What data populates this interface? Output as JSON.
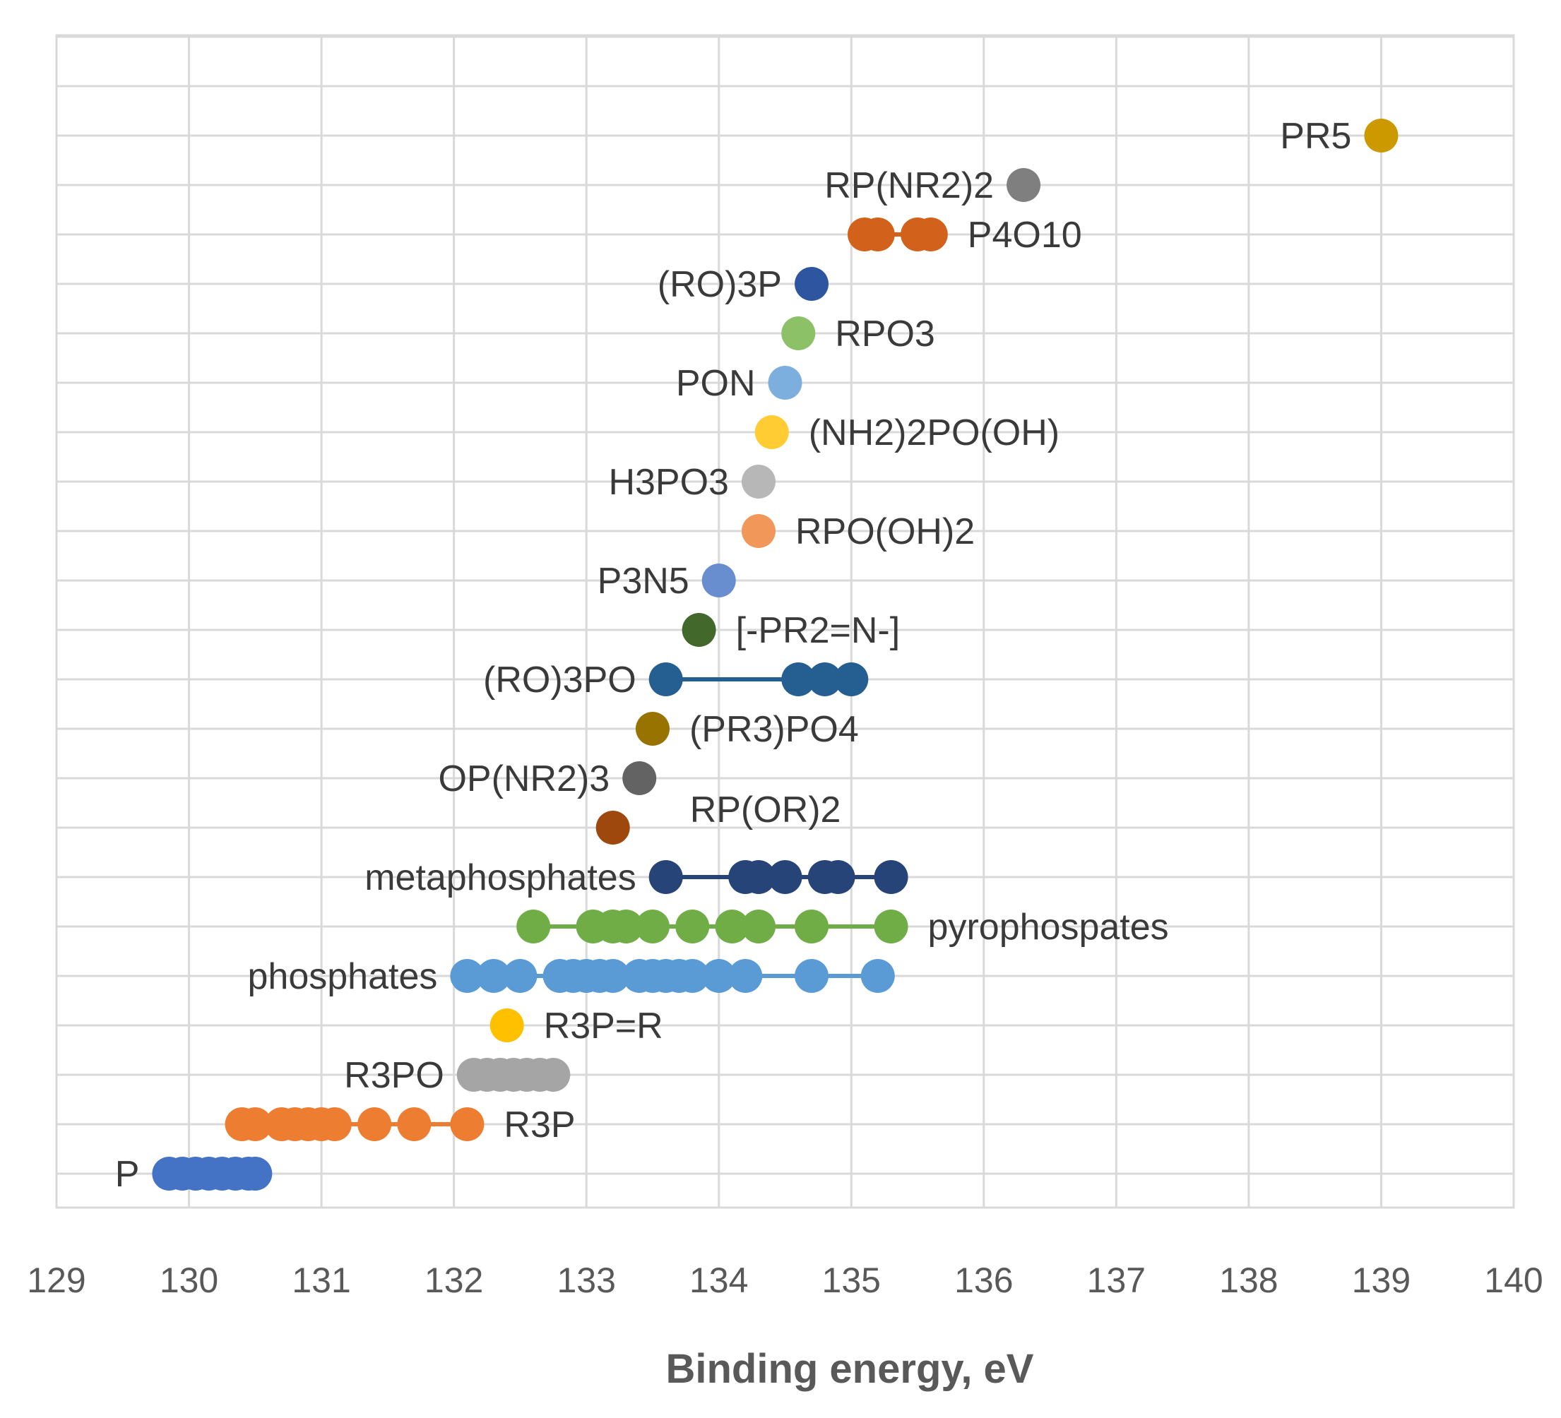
{
  "chart_data": {
    "type": "scatter",
    "title": "",
    "xlabel": "Binding energy, eV",
    "ylabel": "",
    "xlim": [
      129,
      140
    ],
    "x_ticks": [
      129,
      130,
      131,
      132,
      133,
      134,
      135,
      136,
      137,
      138,
      139,
      140
    ],
    "grid": "on",
    "legend": "none",
    "series": [
      {
        "name": "P",
        "label_side": "left",
        "color": "#4472c4",
        "values": [
          129.85,
          129.95,
          130.05,
          130.15,
          130.25,
          130.35,
          130.45,
          130.5
        ]
      },
      {
        "name": "R3P",
        "label_side": "right",
        "color": "#ed7d31",
        "values": [
          130.4,
          130.5,
          130.7,
          130.8,
          130.9,
          131.0,
          131.1,
          131.4,
          131.7,
          132.1
        ]
      },
      {
        "name": "R3PO",
        "label_side": "left",
        "color": "#a5a5a5",
        "values": [
          132.15,
          132.25,
          132.35,
          132.45,
          132.55,
          132.65,
          132.75
        ]
      },
      {
        "name": "R3P=R",
        "label_side": "right",
        "color": "#ffc000",
        "values": [
          132.4
        ]
      },
      {
        "name": "phosphates",
        "label_side": "left",
        "color": "#5b9bd5",
        "values": [
          132.1,
          132.3,
          132.5,
          132.8,
          132.9,
          133.0,
          133.1,
          133.2,
          133.4,
          133.5,
          133.6,
          133.7,
          133.8,
          134.0,
          134.2,
          134.7,
          135.2
        ]
      },
      {
        "name": "pyrophospates",
        "label_side": "right",
        "color": "#70ad47",
        "values": [
          132.6,
          133.05,
          133.2,
          133.3,
          133.5,
          133.8,
          134.1,
          134.3,
          134.7,
          135.3
        ]
      },
      {
        "name": "metaphosphates",
        "label_side": "left",
        "color": "#264478",
        "values": [
          133.6,
          134.2,
          134.3,
          134.5,
          134.8,
          134.9,
          135.3
        ]
      },
      {
        "name": "RP(OR)2",
        "label_side": "right-above",
        "color": "#9e480e",
        "values": [
          133.2
        ]
      },
      {
        "name": "OP(NR2)3",
        "label_side": "left",
        "color": "#636363",
        "values": [
          133.4
        ]
      },
      {
        "name": "(PR3)PO4",
        "label_side": "right",
        "color": "#997300",
        "values": [
          133.5
        ]
      },
      {
        "name": "(RO)3PO",
        "label_side": "left",
        "color": "#255e91",
        "values": [
          133.6,
          134.6,
          134.8,
          135.0
        ]
      },
      {
        "name": "[-PR2=N-]",
        "label_side": "right",
        "color": "#43682b",
        "values": [
          133.85
        ]
      },
      {
        "name": "P3N5",
        "label_side": "left",
        "color": "#698ed0",
        "values": [
          134.0
        ]
      },
      {
        "name": "RPO(OH)2",
        "label_side": "right",
        "color": "#f1975a",
        "values": [
          134.3
        ]
      },
      {
        "name": "H3PO3",
        "label_side": "left",
        "color": "#b7b7b7",
        "values": [
          134.3
        ]
      },
      {
        "name": "(NH2)2PO(OH)",
        "label_side": "right",
        "color": "#ffcd33",
        "values": [
          134.4
        ]
      },
      {
        "name": "PON",
        "label_side": "left",
        "color": "#7cafdd",
        "values": [
          134.5
        ]
      },
      {
        "name": "RPO3",
        "label_side": "right",
        "color": "#8cc168",
        "values": [
          134.6
        ]
      },
      {
        "name": "(RO)3P",
        "label_side": "left",
        "color": "#2e56a0",
        "values": [
          134.7
        ]
      },
      {
        "name": "P4O10",
        "label_side": "right",
        "color": "#d2611b",
        "values": [
          135.1,
          135.2,
          135.5,
          135.6
        ]
      },
      {
        "name": "RP(NR2)2",
        "label_side": "left",
        "color": "#7f7f7f",
        "values": [
          136.3
        ]
      },
      {
        "name": "PR5",
        "label_side": "left",
        "color": "#cc9900",
        "values": [
          139.0
        ]
      }
    ]
  }
}
